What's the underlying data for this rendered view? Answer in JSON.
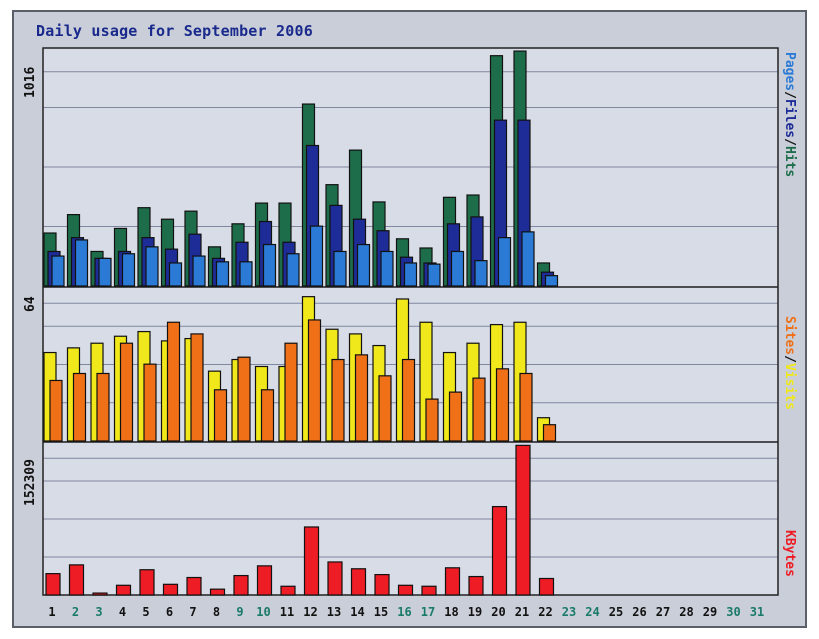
{
  "title": "Daily usage for September 2006",
  "colors": {
    "hits": "#1d6d4b",
    "files": "#1d2c96",
    "pages": "#2a7ad6",
    "sites": "#f0e81a",
    "visits": "#f07018",
    "kbytes": "#ee1c24",
    "weekday_label": "#111111",
    "weekend_label": "#1a7a6a"
  },
  "legends": {
    "top": [
      {
        "text": "Pages",
        "color": "#2a7ad6"
      },
      {
        "text": "/",
        "color": "#111111"
      },
      {
        "text": "Files",
        "color": "#1d2c96"
      },
      {
        "text": "/",
        "color": "#111111"
      },
      {
        "text": "Hits",
        "color": "#1d6d4b"
      }
    ],
    "middle": [
      {
        "text": "Sites",
        "color": "#f07018"
      },
      {
        "text": "/",
        "color": "#111111"
      },
      {
        "text": "Visits",
        "color": "#f0e81a"
      }
    ],
    "bottom": [
      {
        "text": "KBytes",
        "color": "#ee1c24"
      }
    ]
  },
  "chart_data": {
    "type": "bar",
    "title": "Daily usage for September 2006",
    "categories": [
      "1",
      "2",
      "3",
      "4",
      "5",
      "6",
      "7",
      "8",
      "9",
      "10",
      "11",
      "12",
      "13",
      "14",
      "15",
      "16",
      "17",
      "18",
      "19",
      "20",
      "21",
      "22",
      "23",
      "24",
      "25",
      "26",
      "27",
      "28",
      "29",
      "30",
      "31"
    ],
    "weekend_days": [
      "2",
      "3",
      "9",
      "10",
      "16",
      "17",
      "23",
      "24",
      "30",
      "31"
    ],
    "panels": [
      {
        "name": "hits-files-pages",
        "ymax_label": "1016",
        "ylim": [
          0,
          1016
        ],
        "series": [
          {
            "name": "Hits",
            "values": [
              230,
              310,
              150,
              250,
              340,
              290,
              325,
              170,
              270,
              360,
              360,
              790,
              440,
              590,
              365,
              205,
              165,
              385,
              395,
              1000,
              1020,
              100,
              0,
              0,
              0,
              0,
              0,
              0,
              0,
              0,
              0
            ]
          },
          {
            "name": "Files",
            "values": [
              150,
              210,
              120,
              150,
              210,
              160,
              225,
              120,
              190,
              280,
              190,
              610,
              350,
              290,
              240,
              125,
              100,
              270,
              300,
              720,
              720,
              60,
              0,
              0,
              0,
              0,
              0,
              0,
              0,
              0,
              0
            ]
          },
          {
            "name": "Pages",
            "values": [
              130,
              200,
              120,
              140,
              170,
              100,
              130,
              105,
              105,
              180,
              140,
              260,
              150,
              180,
              150,
              100,
              95,
              150,
              110,
              210,
              235,
              45,
              0,
              0,
              0,
              0,
              0,
              0,
              0,
              0,
              0
            ]
          }
        ]
      },
      {
        "name": "sites-visits",
        "ymax_label": "64",
        "ylim": [
          0,
          64
        ],
        "series": [
          {
            "name": "Visits",
            "values": [
              38,
              40,
              42,
              45,
              47,
              43,
              44,
              30,
              35,
              32,
              32,
              62,
              48,
              46,
              41,
              61,
              51,
              38,
              42,
              50,
              51,
              10,
              0,
              0,
              0,
              0,
              0,
              0,
              0,
              0,
              0
            ]
          },
          {
            "name": "Sites",
            "values": [
              26,
              29,
              29,
              42,
              33,
              51,
              46,
              22,
              36,
              22,
              42,
              52,
              35,
              37,
              28,
              35,
              18,
              21,
              27,
              31,
              29,
              7,
              0,
              0,
              0,
              0,
              0,
              0,
              0,
              0,
              0
            ]
          }
        ]
      },
      {
        "name": "kbytes",
        "ymax_label": "152309",
        "ylim": [
          0,
          152309
        ],
        "series": [
          {
            "name": "KBytes",
            "values": [
              22000,
              31000,
              2000,
              10000,
              26000,
              11000,
              18000,
              6000,
              20000,
              30000,
              9000,
              70000,
              34000,
              27000,
              21000,
              10000,
              9000,
              28000,
              19000,
              91000,
              154000,
              17000,
              0,
              0,
              0,
              0,
              0,
              0,
              0,
              0,
              0
            ]
          }
        ]
      }
    ]
  }
}
